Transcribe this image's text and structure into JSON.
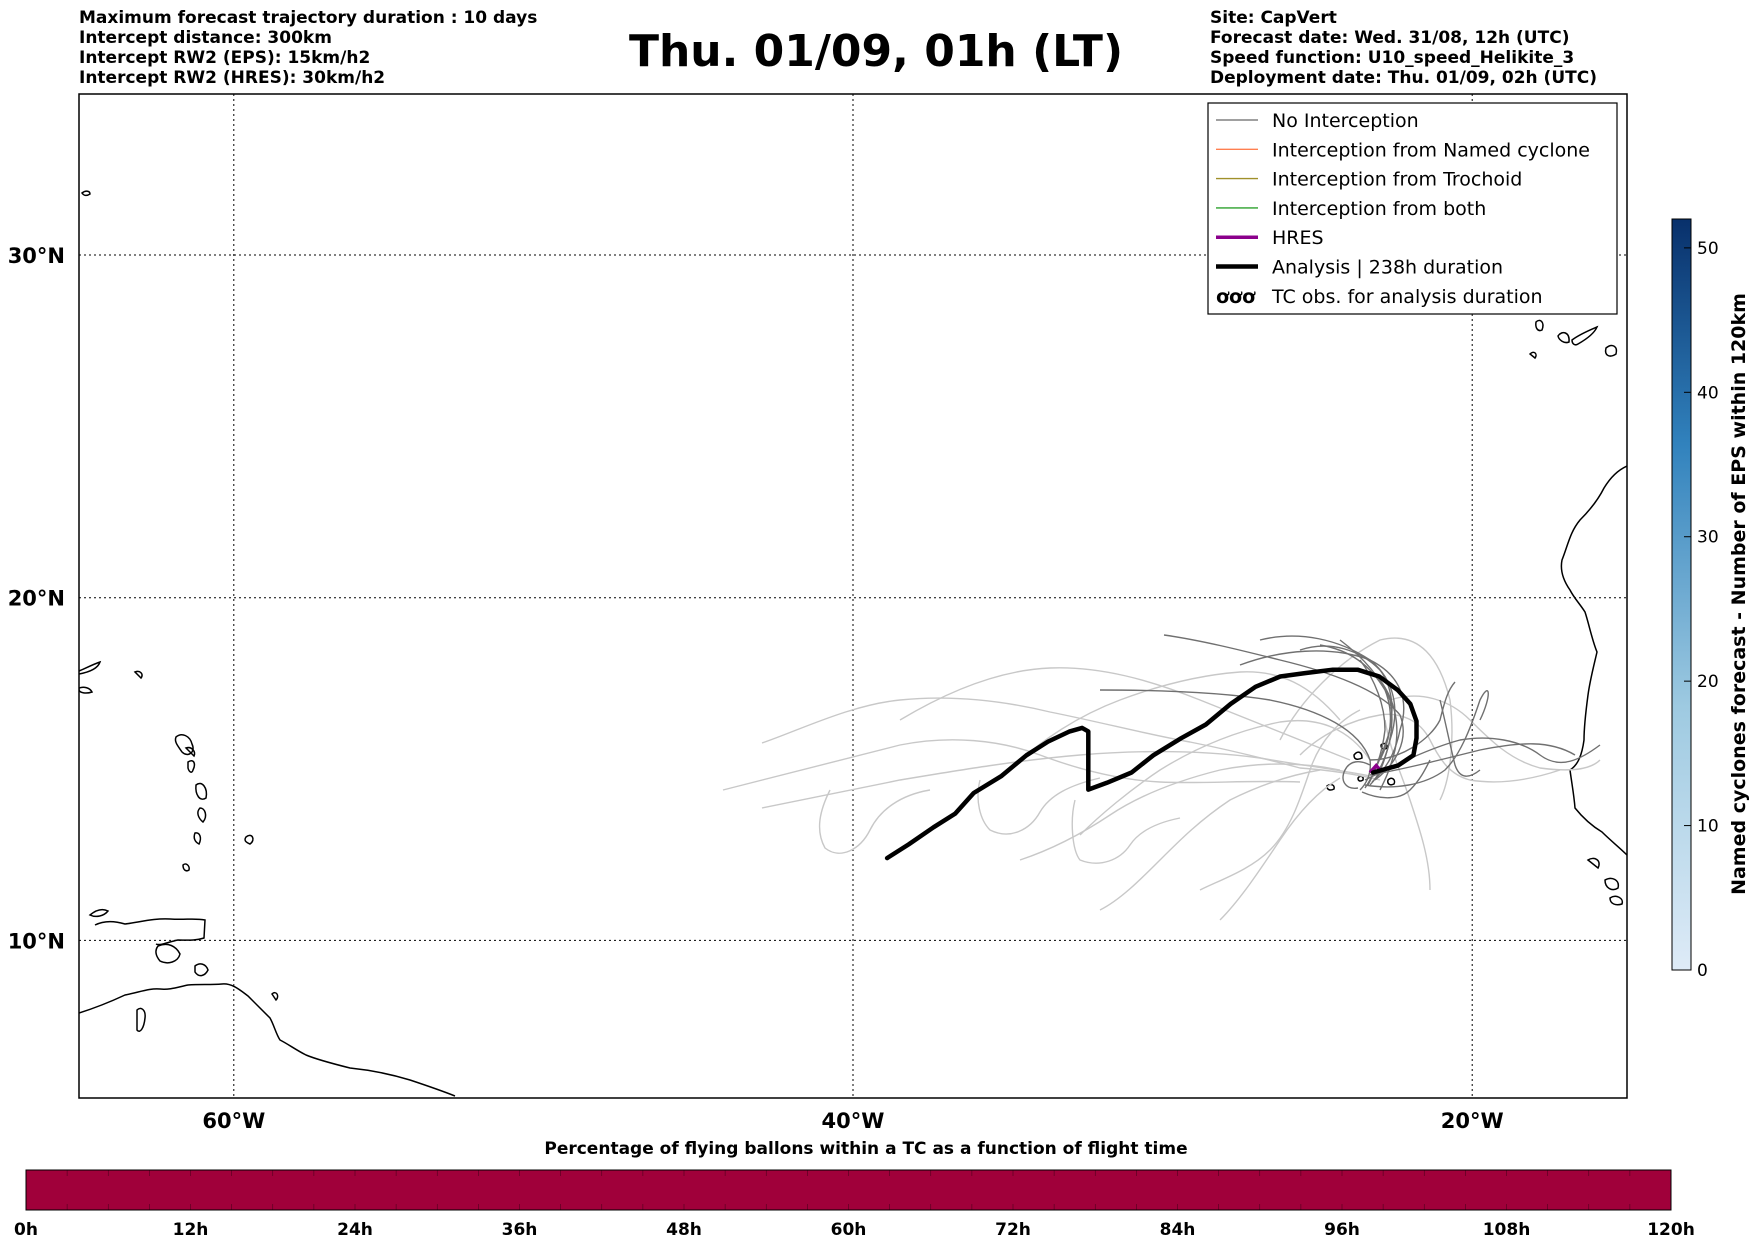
{
  "header": {
    "left_lines": [
      "Maximum forecast trajectory duration : 10 days",
      "Intercept distance: 300km",
      "Intercept RW2 (EPS):  15km/h2",
      "Intercept RW2 (HRES): 30km/h2"
    ],
    "title": "Thu. 01/09, 01h (LT)",
    "right_lines": [
      "Site: CapVert",
      "Forecast date: Wed. 31/08, 12h (UTC)",
      "Speed function: U10_speed_Helikite_3",
      "Deployment date: Thu. 01/09, 02h (UTC)"
    ]
  },
  "map": {
    "lon_labels": [
      "60°W",
      "40°W",
      "20°W"
    ],
    "lat_labels": [
      "30°N",
      "20°N",
      "10°N"
    ],
    "lon_values": [
      -60,
      -40,
      -20
    ],
    "lat_values": [
      30,
      20,
      10
    ],
    "extent": {
      "lon": [
        -65,
        -15
      ],
      "lat": [
        5.4,
        34.7
      ]
    },
    "legend": [
      {
        "label": "No Interception",
        "color": "#808080",
        "style": "thin"
      },
      {
        "label": "Interception from Named cyclone",
        "color": "#ff7f50",
        "style": "thin"
      },
      {
        "label": "Interception from Trochoid",
        "color": "#a0902a",
        "style": "thin"
      },
      {
        "label": "Interception from both",
        "color": "#2ca02c",
        "style": "thin"
      },
      {
        "label": "HRES",
        "color": "#8b008b",
        "style": "medium"
      },
      {
        "label": "Analysis | 238h duration",
        "color": "#000000",
        "style": "thick"
      },
      {
        "label": "TC obs. for analysis duration",
        "icon": "cyclone-symbols-icon"
      }
    ],
    "analysis_track": [
      [
        -38.9,
        12.4
      ],
      [
        -38.2,
        12.8
      ],
      [
        -37.4,
        13.3
      ],
      [
        -36.7,
        13.7
      ],
      [
        -36.1,
        14.3
      ],
      [
        -35.2,
        14.8
      ],
      [
        -34.4,
        15.4
      ],
      [
        -33.7,
        15.8
      ],
      [
        -33.0,
        16.1
      ],
      [
        -32.6,
        16.2
      ],
      [
        -32.4,
        16.1
      ],
      [
        -32.4,
        15.3
      ],
      [
        -32.4,
        14.4
      ],
      [
        -31.8,
        14.6
      ],
      [
        -31.0,
        14.9
      ],
      [
        -30.3,
        15.4
      ],
      [
        -29.4,
        15.9
      ],
      [
        -28.6,
        16.3
      ],
      [
        -27.8,
        16.9
      ],
      [
        -27.0,
        17.4
      ],
      [
        -26.2,
        17.7
      ],
      [
        -25.4,
        17.8
      ],
      [
        -24.5,
        17.9
      ],
      [
        -23.7,
        17.9
      ],
      [
        -23.0,
        17.7
      ],
      [
        -22.4,
        17.3
      ],
      [
        -22.0,
        16.9
      ],
      [
        -21.8,
        16.4
      ],
      [
        -21.8,
        15.9
      ],
      [
        -21.9,
        15.4
      ],
      [
        -22.4,
        15.1
      ],
      [
        -23.2,
        14.9
      ]
    ],
    "hres_track": [
      [
        -23.3,
        14.9
      ],
      [
        -23.1,
        15.1
      ],
      [
        -23.0,
        15.0
      ]
    ]
  },
  "colorbar_right": {
    "label": "Named cyclones forecast - Number of EPS within 120km",
    "ticks": [
      "0",
      "10",
      "20",
      "30",
      "40",
      "50"
    ],
    "tick_values": [
      0,
      10,
      20,
      30,
      40,
      50
    ],
    "range": [
      0,
      52
    ],
    "color_low": "#deebf7",
    "color_high": "#08306b"
  },
  "colorbar_bottom": {
    "label": "Percentage of flying ballons within a TC as a function of flight time",
    "ticks": [
      "0h",
      "12h",
      "24h",
      "36h",
      "48h",
      "60h",
      "72h",
      "84h",
      "96h",
      "108h",
      "120h"
    ],
    "tick_values": [
      0,
      12,
      24,
      36,
      48,
      60,
      72,
      84,
      96,
      108,
      120
    ],
    "fill_color": "#a0003a"
  }
}
